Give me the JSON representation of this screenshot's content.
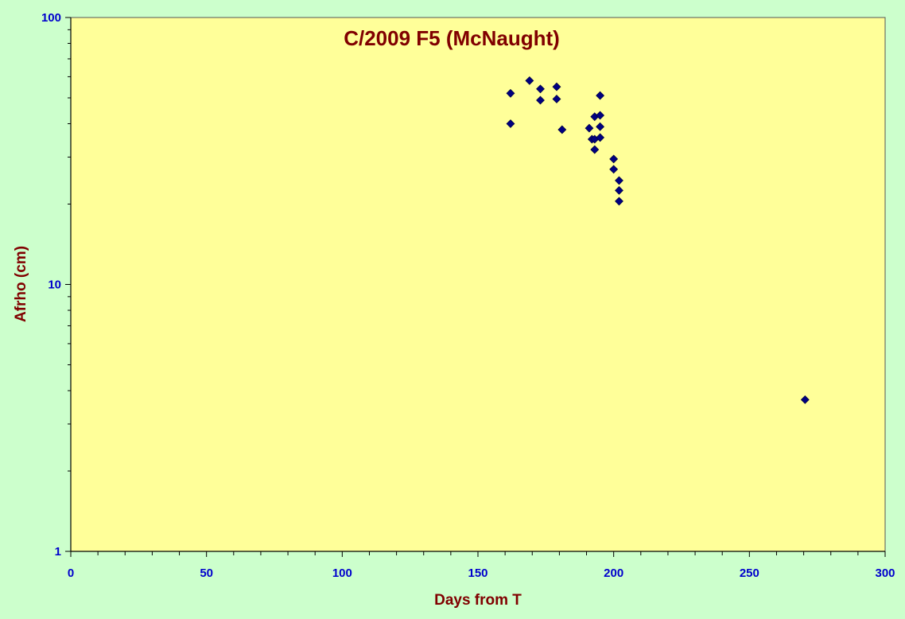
{
  "chart_data": {
    "type": "scatter",
    "title": "C/2009 F5 (McNaught)",
    "xlabel": "Days from T",
    "ylabel": "Afrho (cm)",
    "xlim": [
      0,
      300
    ],
    "ylim": [
      1,
      100
    ],
    "yscale": "log",
    "x_ticks": [
      "0",
      "50",
      "100",
      "150",
      "200",
      "250",
      "300"
    ],
    "y_ticks": [
      "1",
      "10",
      "100"
    ],
    "grid": false,
    "legend": "none",
    "colors": {
      "page_background": "#ccffcc",
      "plot_background": "#ffff99",
      "marker": "#000080",
      "tick_text": "#0000cc",
      "title_text": "#800000"
    },
    "marker": "diamond",
    "points": [
      {
        "x": 162,
        "y": 52
      },
      {
        "x": 162,
        "y": 40
      },
      {
        "x": 169,
        "y": 58
      },
      {
        "x": 173,
        "y": 54
      },
      {
        "x": 173,
        "y": 49
      },
      {
        "x": 179,
        "y": 55
      },
      {
        "x": 179,
        "y": 49.5
      },
      {
        "x": 181,
        "y": 38
      },
      {
        "x": 191,
        "y": 38.5
      },
      {
        "x": 192,
        "y": 35
      },
      {
        "x": 193,
        "y": 42.5
      },
      {
        "x": 193,
        "y": 35
      },
      {
        "x": 193,
        "y": 32
      },
      {
        "x": 195,
        "y": 51
      },
      {
        "x": 195,
        "y": 43
      },
      {
        "x": 195,
        "y": 39
      },
      {
        "x": 195,
        "y": 35.5
      },
      {
        "x": 200,
        "y": 29.5
      },
      {
        "x": 200,
        "y": 27
      },
      {
        "x": 202,
        "y": 24.5
      },
      {
        "x": 202,
        "y": 22.5
      },
      {
        "x": 202,
        "y": 20.5
      },
      {
        "x": 270.5,
        "y": 3.7
      }
    ]
  }
}
